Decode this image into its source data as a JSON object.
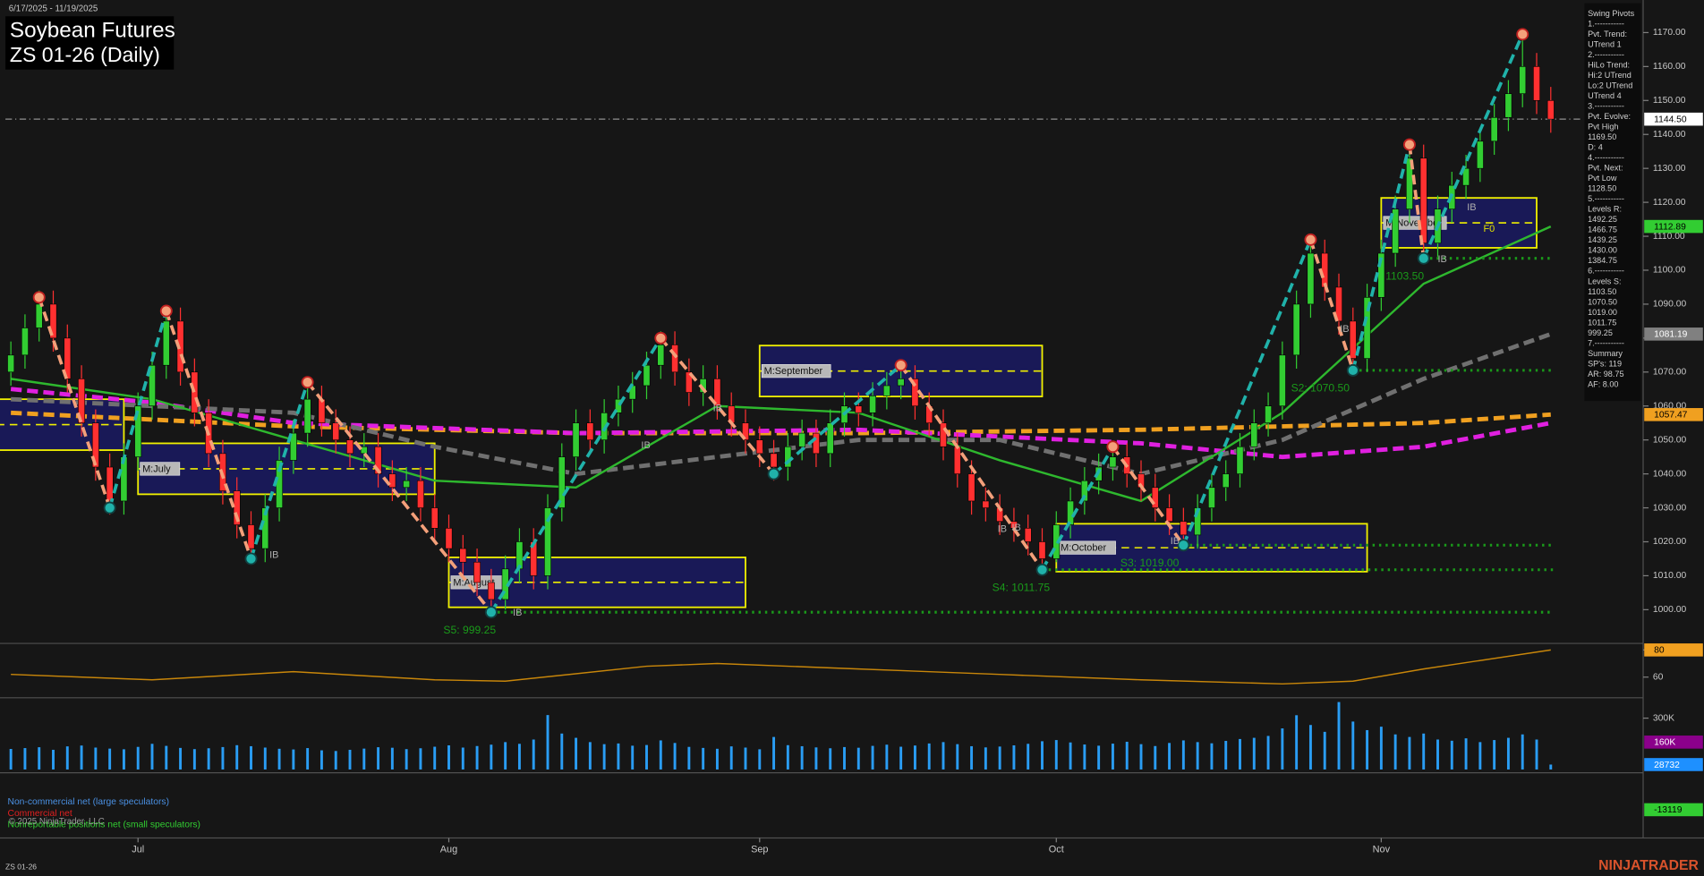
{
  "date_range": "6/17/2025 - 11/19/2025",
  "title": "Soybean Futures",
  "subtitle": "ZS 01-26 (Daily)",
  "footer_symbol": "ZS 01-26",
  "brand": "NINJATRADER",
  "copyright": "© 2025 NinjaTrader, LLC",
  "cot_panel": {
    "labels": [
      {
        "text": "Non-commercial net (large speculators)",
        "color": "#4a90e2"
      },
      {
        "text": "Commercial net",
        "color": "#e02020"
      },
      {
        "text": "Nonreportable positions net (small speculators)",
        "color": "#32cd32"
      }
    ],
    "tags": [
      {
        "value": -13119,
        "color": "#32cd32"
      }
    ]
  },
  "chart_data": [
    {
      "type": "candlestick",
      "categories": [
        null,
        null,
        null,
        null,
        null,
        null,
        null,
        null,
        null,
        "Jul",
        null,
        null,
        null,
        null,
        null,
        null,
        null,
        null,
        null,
        null,
        null,
        null,
        null,
        null,
        null,
        null,
        null,
        null,
        null,
        null,
        null,
        "Aug",
        null,
        null,
        null,
        null,
        null,
        null,
        null,
        null,
        null,
        null,
        null,
        null,
        null,
        null,
        null,
        null,
        null,
        null,
        null,
        null,
        null,
        "Sep",
        null,
        null,
        null,
        null,
        null,
        null,
        null,
        null,
        null,
        null,
        null,
        null,
        null,
        null,
        null,
        null,
        null,
        null,
        null,
        null,
        "Oct",
        null,
        null,
        null,
        null,
        null,
        null,
        null,
        null,
        null,
        null,
        null,
        null,
        null,
        null,
        null,
        null,
        null,
        null,
        null,
        null,
        null,
        null,
        "Nov",
        null,
        null,
        null,
        null,
        null,
        null,
        null,
        null,
        null,
        null,
        null,
        null
      ],
      "open": [
        1070,
        1075,
        1083,
        1090,
        1080,
        1068,
        1055,
        1042,
        1032,
        1045,
        1060,
        1072,
        1085,
        1070,
        1058,
        1046,
        1035,
        1025,
        1018,
        1030,
        1044,
        1052,
        1062,
        1055,
        1050,
        1046,
        1048,
        1040,
        1036,
        1038,
        1030,
        1024,
        1018,
        1014,
        1008,
        1003,
        1012,
        1020,
        1010,
        1030,
        1045,
        1055,
        1050,
        1058,
        1062,
        1066,
        1072,
        1078,
        1070,
        1064,
        1068,
        1060,
        1055,
        1050,
        1046,
        1042,
        1048,
        1052,
        1046,
        1055,
        1060,
        1058,
        1063,
        1066,
        1068,
        1060,
        1055,
        1048,
        1040,
        1032,
        1030,
        1026,
        1024,
        1020,
        1015,
        1025,
        1032,
        1038,
        1042,
        1045,
        1040,
        1036,
        1030,
        1026,
        1022,
        1030,
        1036,
        1040,
        1048,
        1055,
        1060,
        1075,
        1090,
        1105,
        1095,
        1085,
        1074,
        1092,
        1105,
        1118,
        1133,
        1108,
        1118,
        1125,
        1130,
        1138,
        1145,
        1152,
        1160,
        1150
      ],
      "high": [
        1079,
        1087,
        1094,
        1094,
        1084,
        1072,
        1059,
        1046,
        1049,
        1064,
        1076,
        1089,
        1089,
        1074,
        1062,
        1050,
        1039,
        1029,
        1034,
        1048,
        1056,
        1066,
        1066,
        1059,
        1054,
        1052,
        1052,
        1044,
        1042,
        1042,
        1034,
        1028,
        1022,
        1018,
        1012,
        1016,
        1024,
        1024,
        1034,
        1049,
        1059,
        1059,
        1062,
        1066,
        1070,
        1076,
        1082,
        1082,
        1074,
        1072,
        1072,
        1064,
        1059,
        1054,
        1050,
        1052,
        1056,
        1056,
        1059,
        1064,
        1064,
        1067,
        1070,
        1072,
        1072,
        1064,
        1059,
        1052,
        1044,
        1036,
        1034,
        1030,
        1028,
        1024,
        1029,
        1036,
        1042,
        1046,
        1049,
        1049,
        1044,
        1040,
        1034,
        1030,
        1034,
        1040,
        1044,
        1052,
        1059,
        1064,
        1079,
        1094,
        1109,
        1109,
        1099,
        1089,
        1096,
        1109,
        1122,
        1137,
        1137,
        1122,
        1129,
        1134,
        1142,
        1149,
        1156,
        1169.5,
        1164,
        1154
      ],
      "low": [
        1066,
        1071,
        1079,
        1076,
        1064,
        1051,
        1038,
        1028,
        1028,
        1041,
        1056,
        1068,
        1066,
        1054,
        1042,
        1031,
        1021,
        1014,
        1014,
        1026,
        1040,
        1048,
        1051,
        1046,
        1042,
        1042,
        1036,
        1032,
        1032,
        1026,
        1020,
        1014,
        1010,
        1004,
        999.25,
        1000,
        1008,
        1006,
        1006,
        1026,
        1041,
        1046,
        1046,
        1054,
        1058,
        1062,
        1068,
        1066,
        1060,
        1060,
        1056,
        1051,
        1046,
        1042,
        1038,
        1038,
        1044,
        1042,
        1042,
        1051,
        1054,
        1054,
        1059,
        1062,
        1056,
        1051,
        1044,
        1036,
        1028,
        1026,
        1022,
        1020,
        1016,
        1011.75,
        1014,
        1021,
        1028,
        1034,
        1038,
        1036,
        1032,
        1026,
        1022,
        1018,
        1018,
        1026,
        1032,
        1036,
        1044,
        1051,
        1056,
        1071,
        1086,
        1091,
        1081,
        1070,
        1070,
        1088,
        1101,
        1114,
        1103.5,
        1104,
        1114,
        1121,
        1126,
        1134,
        1141,
        1148,
        1146,
        1140.5
      ],
      "close": [
        1075,
        1083,
        1090,
        1080,
        1068,
        1055,
        1042,
        1032,
        1045,
        1060,
        1072,
        1085,
        1070,
        1058,
        1046,
        1035,
        1025,
        1018,
        1030,
        1044,
        1052,
        1062,
        1055,
        1050,
        1046,
        1048,
        1040,
        1036,
        1038,
        1030,
        1024,
        1018,
        1014,
        1008,
        1003,
        1012,
        1020,
        1010,
        1030,
        1045,
        1055,
        1050,
        1058,
        1062,
        1066,
        1072,
        1078,
        1070,
        1064,
        1068,
        1060,
        1055,
        1050,
        1046,
        1042,
        1048,
        1052,
        1046,
        1055,
        1060,
        1058,
        1063,
        1066,
        1068,
        1060,
        1055,
        1048,
        1040,
        1032,
        1030,
        1026,
        1024,
        1020,
        1015,
        1025,
        1032,
        1038,
        1042,
        1045,
        1040,
        1036,
        1030,
        1026,
        1022,
        1030,
        1036,
        1040,
        1048,
        1055,
        1060,
        1075,
        1090,
        1105,
        1095,
        1085,
        1074,
        1092,
        1105,
        1118,
        1133,
        1108,
        1118,
        1125,
        1130,
        1138,
        1145,
        1152,
        1160,
        1150,
        1144.5
      ],
      "up_color": "#32cd32",
      "down_color": "#ff3030",
      "ylim": [
        990.7,
        1179.6
      ],
      "yticks": [
        {
          "value": 1000,
          "label": "1000.00"
        },
        {
          "value": 1010,
          "label": "1010.00"
        },
        {
          "value": 1020,
          "label": "1020.00"
        },
        {
          "value": 1030,
          "label": "1030.00"
        },
        {
          "value": 1040,
          "label": "1040.00"
        },
        {
          "value": 1050,
          "label": "1050.00"
        },
        {
          "value": 1060,
          "label": "1060.00"
        },
        {
          "value": 1070,
          "label": "1070.00"
        },
        {
          "value": 1080,
          "label": "1080.00"
        },
        {
          "value": 1090,
          "label": "1090.00"
        },
        {
          "value": 1100,
          "label": "1100.00"
        },
        {
          "value": 1110,
          "label": "1110.00"
        },
        {
          "value": 1120,
          "label": "1120.00"
        },
        {
          "value": 1130,
          "label": "1130.00"
        },
        {
          "value": 1140,
          "label": "1140.00"
        },
        {
          "value": 1150,
          "label": "1150.00"
        },
        {
          "value": 1160,
          "label": "1160.00"
        },
        {
          "value": 1170,
          "label": "1170.00"
        }
      ],
      "zones": [
        {
          "x": [
            -1,
            8
          ],
          "top": 1062,
          "bottom": 1047
        },
        {
          "label": "M:July",
          "x": [
            9,
            30
          ],
          "top": 1049,
          "bottom": 1034
        },
        {
          "label": "M:August",
          "x": [
            31,
            52
          ],
          "top": 1015.4,
          "bottom": 1000.7
        },
        {
          "label": "M:September",
          "x": [
            53,
            73
          ],
          "top": 1077.8,
          "bottom": 1062.8
        },
        {
          "label": "M:October",
          "x": [
            74,
            96
          ],
          "top": 1025.3,
          "bottom": 1011.2
        },
        {
          "label": "M:November",
          "x": [
            97,
            108
          ],
          "top": 1121.3,
          "bottom": 1106.6
        }
      ],
      "zone_fill": "#1a1a5e",
      "zone_stroke": "#f0f000",
      "overlays": [
        {
          "color": "#f0a020",
          "dashed": true,
          "x": [
            0,
            20,
            40,
            60,
            80,
            100,
            109
          ],
          "values": [
            1058,
            1054,
            1052,
            1052,
            1053,
            1055,
            1057.47
          ]
        },
        {
          "color": "#e020e0",
          "dashed": true,
          "x": [
            0,
            10,
            20,
            40,
            60,
            80,
            90,
            100,
            109
          ],
          "values": [
            1065,
            1061,
            1055,
            1052,
            1053,
            1049,
            1045,
            1048,
            1055
          ]
        },
        {
          "color": "#707070",
          "dashed": true,
          "x": [
            0,
            10,
            20,
            30,
            40,
            50,
            60,
            70,
            80,
            90,
            100,
            109
          ],
          "values": [
            1062,
            1060,
            1058,
            1048,
            1040,
            1045,
            1050,
            1050,
            1040,
            1050,
            1068,
            1081.19
          ]
        },
        {
          "color": "#2eb82e",
          "dashed": false,
          "x": [
            0,
            10,
            20,
            30,
            40,
            50,
            60,
            70,
            80,
            90,
            100,
            109
          ],
          "values": [
            1068,
            1062,
            1050,
            1038,
            1036,
            1060,
            1058,
            1044,
            1032,
            1058,
            1096,
            1112.89
          ]
        }
      ],
      "levels": [
        {
          "label": "S5: 999.25",
          "value": 999.25,
          "x": 34
        },
        {
          "label": "S4: 1011.75",
          "value": 1011.75,
          "x": 73
        },
        {
          "label": "S3: 1019.00",
          "value": 1019.0,
          "x": 83
        },
        {
          "label": "S2: 1070.50",
          "value": 1070.5,
          "x": 95
        },
        {
          "label": "1103.50",
          "value": 1103.5,
          "x": 100
        }
      ],
      "level_color": "#1a9a1a",
      "pivots": {
        "x": [
          2,
          7,
          11,
          17,
          21,
          34,
          46,
          54,
          63,
          73,
          78,
          83,
          92,
          95,
          99,
          100,
          107
        ],
        "values": [
          1092,
          1030,
          1088,
          1015,
          1067,
          999.25,
          1080,
          1040,
          1072,
          1011.75,
          1048,
          1019,
          1109,
          1070.5,
          1137,
          1103.5,
          1169.5
        ]
      },
      "pivot_up_color": "#20b2aa",
      "pivot_down_color": "#f4a07a",
      "ib_label": "IB",
      "f0_label": "F0",
      "last_price_line": true,
      "tags": [
        {
          "value": 1144.5,
          "label": "1144.50",
          "color": "#ffffff",
          "text_color": "#000000"
        },
        {
          "value": 1112.89,
          "color": "#32cd32",
          "text_color": "#000000"
        },
        {
          "value": 1081.19,
          "color": "#808080",
          "text_color": "#ffffff"
        },
        {
          "value": 1057.47,
          "color": "#f0a020",
          "text_color": "#000000"
        }
      ],
      "info_panel": [
        "Swing Pivots",
        "1.-----------",
        "Pvt. Trend:",
        "UTrend 1",
        "2.-----------",
        "HiLo Trend:",
        "Hi:2 UTrend",
        "Lo:2 UTrend",
        "UTrend 4",
        "3.-----------",
        "Pvt. Evolve:",
        "Pvt High",
        "1169.50",
        "D: 4",
        "4.-----------",
        "Pvt. Next:",
        "Pvt Low",
        "1128.50",
        "5.-----------",
        "Levels R:",
        "1492.25",
        "1466.75",
        "1439.25",
        "1430.00",
        "1384.75",
        "6.-----------",
        "Levels S:",
        "1103.50",
        "1070.50",
        "1019.00",
        "1011.75",
        "999.25",
        "7.-----------",
        "Summary",
        "SP's: 119",
        "AR: 98.75",
        "AF: 8.00"
      ]
    },
    {
      "type": "line",
      "color": "#c8860a",
      "x": [
        0,
        10,
        20,
        30,
        35,
        45,
        50,
        60,
        70,
        80,
        90,
        95,
        100,
        109
      ],
      "values": [
        62,
        58,
        64,
        58,
        57,
        68,
        70,
        66,
        62,
        58,
        55,
        57,
        66,
        80
      ],
      "ylim": [
        45.6,
        83.2
      ],
      "yticks": [
        60,
        80
      ],
      "tags": [
        {
          "value": 80,
          "color": "#f0a020",
          "text_color": "#000000"
        }
      ]
    },
    {
      "type": "bar",
      "color": "#2a9df4",
      "values": [
        120000,
        125000,
        130000,
        115000,
        135000,
        140000,
        128000,
        122000,
        118000,
        132000,
        150000,
        138000,
        126000,
        119000,
        124000,
        131000,
        142000,
        136000,
        128000,
        121000,
        117000,
        125000,
        112000,
        108000,
        115000,
        122000,
        130000,
        127000,
        119000,
        124000,
        133000,
        141000,
        128000,
        137000,
        145000,
        160000,
        150000,
        175000,
        318000,
        210000,
        185000,
        160000,
        148000,
        152000,
        139000,
        143000,
        170000,
        155000,
        132000,
        126000,
        121000,
        135000,
        128000,
        118000,
        190000,
        142000,
        136000,
        129000,
        124000,
        131000,
        127000,
        138000,
        145000,
        133000,
        140000,
        152000,
        160000,
        148000,
        136000,
        129000,
        134000,
        141000,
        150000,
        165000,
        172000,
        158000,
        146000,
        139000,
        151000,
        162000,
        148000,
        137000,
        155000,
        170000,
        160000,
        153000,
        167000,
        178000,
        185000,
        196000,
        240000,
        317000,
        260000,
        220000,
        394000,
        280000,
        230000,
        250000,
        205000,
        190000,
        210000,
        175000,
        168000,
        182000,
        160000,
        172000,
        185000,
        205000,
        175000,
        28732
      ],
      "ylim": [
        0,
        400000
      ],
      "yticks": [
        {
          "value": 300000,
          "label": "300K"
        }
      ],
      "tags": [
        {
          "value": 160000,
          "label": "160K",
          "color": "#8b008b",
          "text_color": "#ffffff"
        },
        {
          "value": 28732,
          "color": "#1e90ff",
          "text_color": "#ffffff"
        }
      ]
    }
  ]
}
